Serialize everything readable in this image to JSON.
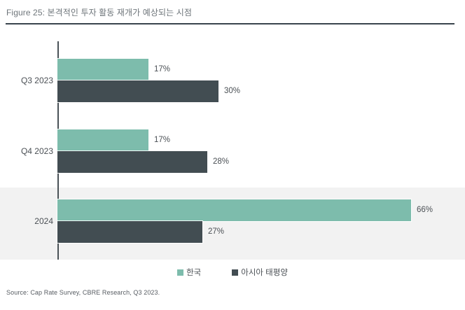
{
  "title": "Figure 25: 본격적인 투자 활동 재개가 예상되는 시점",
  "source": "Source: Cap Rate Survey, CBRE Research, Q3 2023.",
  "colors": {
    "korea_green": "#7dbcac",
    "apac_slate": "#424d52",
    "highlight_band": "#f2f2f2",
    "title_rule": "#3a444d",
    "title_text": "#6e757a",
    "label_text": "#4b5055",
    "axis_line": "#4a5257"
  },
  "chart_data": {
    "type": "bar",
    "orientation": "horizontal",
    "title": "Figure 25: 본격적인 투자 활동 재개가 예상되는 시점",
    "categories": [
      "Q3 2023",
      "Q4 2023",
      "2024"
    ],
    "series": [
      {
        "name": "한국",
        "color": "#7dbcac",
        "values": [
          17,
          17,
          66
        ]
      },
      {
        "name": "아시아 태평양",
        "color": "#424d52",
        "values": [
          30,
          28,
          27
        ]
      }
    ],
    "value_suffix": "%",
    "xlim": [
      0,
      70
    ],
    "grid": false,
    "data_labels": true,
    "legend_position": "bottom",
    "highlighted_category": "2024",
    "source": "Source: Cap Rate Survey, CBRE Research, Q3 2023."
  }
}
